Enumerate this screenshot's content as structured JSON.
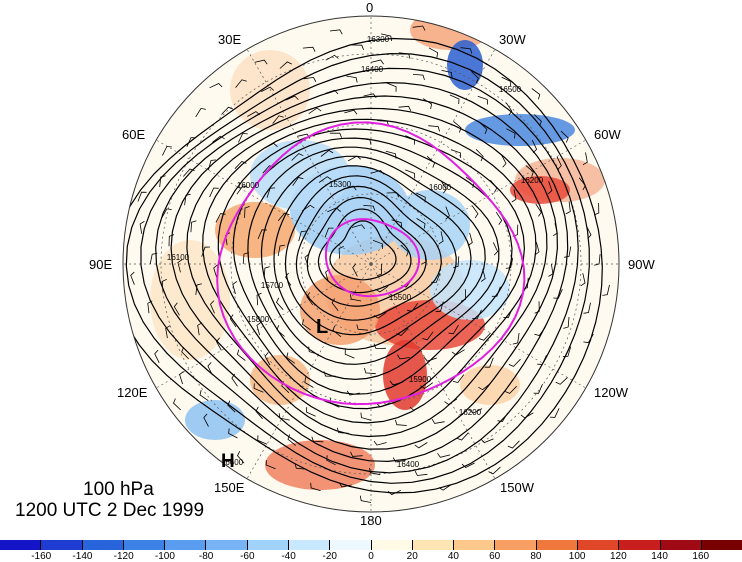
{
  "map": {
    "level": "100 hPa",
    "datetime": "1200 UTC 2 Dec 1999",
    "projection": "north polar stereographic",
    "longitude_labels": [
      "0",
      "30W",
      "60W",
      "90W",
      "120W",
      "150W",
      "180",
      "150E",
      "120E",
      "90E",
      "60E",
      "30E"
    ],
    "contour_labels": [
      "16300",
      "16400",
      "16500",
      "16200",
      "16000",
      "15300",
      "15700",
      "15500",
      "15800",
      "16100",
      "16600",
      "16400",
      "15900",
      "16200",
      "16000"
    ],
    "pressure_centers": [
      {
        "label": "L",
        "name": "low-center"
      },
      {
        "label": "H",
        "name": "high-center"
      }
    ],
    "colors": {
      "contour": "#000000",
      "highlight_contour": "#e020e0",
      "positive_anomaly": "#e03a3a",
      "negative_anomaly": "#2a6fd6"
    }
  },
  "colorbar": {
    "ticks": [
      "-160",
      "-140",
      "-120",
      "-100",
      "-80",
      "-60",
      "-40",
      "-20",
      "0",
      "20",
      "40",
      "60",
      "80",
      "100",
      "120",
      "140",
      "160"
    ],
    "colors": [
      "#1414c8",
      "#1e3cd2",
      "#2864dc",
      "#3c82e6",
      "#5a9cf0",
      "#78b4f5",
      "#a0d2fa",
      "#c8e8ff",
      "#eef8ff",
      "#fffbe6",
      "#fde6b4",
      "#fcc88c",
      "#f8a064",
      "#f0783c",
      "#e04628",
      "#c81e1e",
      "#a00a14",
      "#780000"
    ]
  }
}
